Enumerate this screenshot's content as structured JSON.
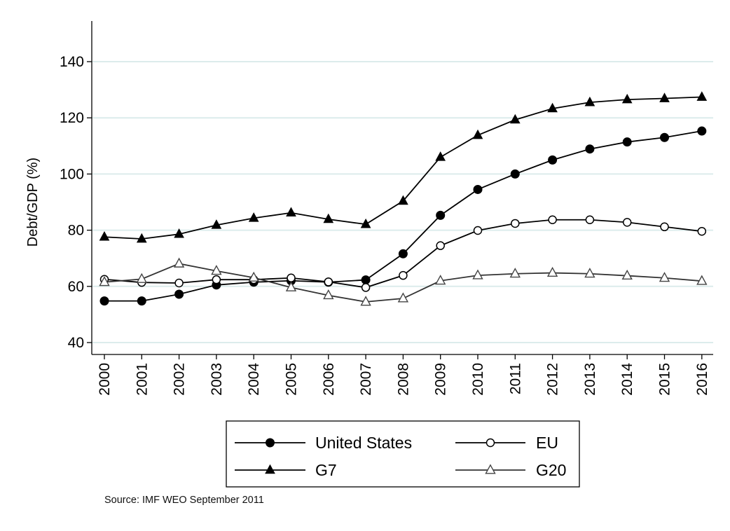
{
  "chart_data": {
    "type": "line",
    "title": "",
    "xlabel": "",
    "ylabel": "Debt/GDP (%)",
    "x": [
      2000,
      2001,
      2002,
      2003,
      2004,
      2005,
      2006,
      2007,
      2008,
      2009,
      2010,
      2011,
      2012,
      2013,
      2014,
      2015,
      2016
    ],
    "ylim": [
      35,
      155
    ],
    "yticks": [
      40,
      60,
      80,
      100,
      120,
      140
    ],
    "grid": true,
    "legend_position": "bottom",
    "series": [
      {
        "name": "United States",
        "marker": "filled-circle",
        "values": [
          54.8,
          54.8,
          57.2,
          60.5,
          61.5,
          62.0,
          61.5,
          62.3,
          71.6,
          85.3,
          94.5,
          100.0,
          105.0,
          108.9,
          111.4,
          113.0,
          115.3
        ]
      },
      {
        "name": "EU",
        "marker": "hollow-circle",
        "values": [
          62.5,
          61.4,
          61.2,
          62.4,
          62.4,
          63.0,
          61.6,
          59.6,
          63.9,
          74.5,
          79.9,
          82.4,
          83.7,
          83.7,
          82.8,
          81.2,
          79.6
        ]
      },
      {
        "name": "G7",
        "marker": "filled-triangle",
        "values": [
          77.6,
          76.9,
          78.6,
          81.8,
          84.3,
          86.2,
          83.9,
          82.1,
          90.4,
          106.0,
          113.8,
          119.3,
          123.3,
          125.5,
          126.5,
          126.9,
          127.4
        ]
      },
      {
        "name": "G20",
        "marker": "hollow-triangle",
        "values": [
          61.5,
          62.6,
          68.1,
          65.5,
          63.1,
          59.6,
          56.8,
          54.5,
          55.7,
          62.0,
          63.9,
          64.5,
          64.8,
          64.5,
          63.8,
          63.0,
          61.9
        ]
      }
    ],
    "note": "Source: IMF WEO September 2011"
  },
  "colors": {
    "line": "#000000",
    "grid": "#dcecec",
    "axis": "#000000"
  }
}
